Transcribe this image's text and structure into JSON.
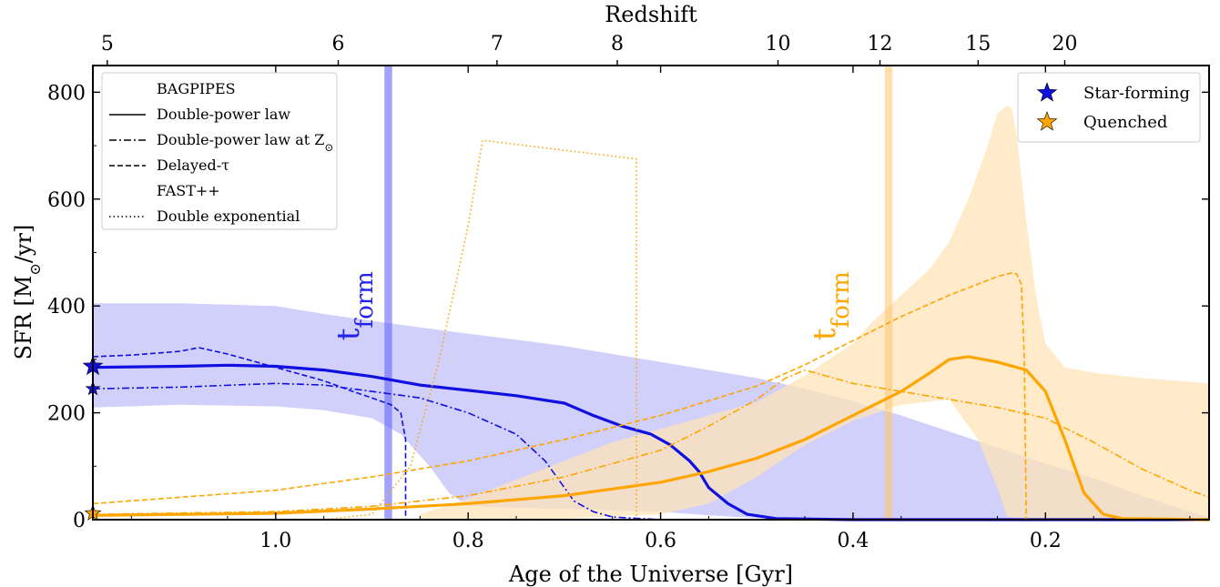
{
  "chart_data": {
    "type": "line",
    "xlabel": "Age of the Universe [Gyr]",
    "ylabel_prefix": "SFR [M",
    "ylabel_sub": "⊙",
    "ylabel_suffix": "/yr]",
    "top_xlabel": "Redshift",
    "xlim": [
      1.19,
      0.03
    ],
    "ylim": [
      0,
      850
    ],
    "x_ticks": [
      {
        "value": 1.0,
        "label": "1.0"
      },
      {
        "value": 0.8,
        "label": "0.8"
      },
      {
        "value": 0.6,
        "label": "0.6"
      },
      {
        "value": 0.4,
        "label": "0.4"
      },
      {
        "value": 0.2,
        "label": "0.2"
      }
    ],
    "y_ticks": [
      {
        "value": 0,
        "label": "0"
      },
      {
        "value": 200,
        "label": "200"
      },
      {
        "value": 400,
        "label": "400"
      },
      {
        "value": 600,
        "label": "600"
      },
      {
        "value": 800,
        "label": "800"
      }
    ],
    "top_ticks": [
      {
        "age": 1.175,
        "label": "5"
      },
      {
        "age": 0.935,
        "label": "6"
      },
      {
        "age": 0.77,
        "label": "7"
      },
      {
        "age": 0.645,
        "label": "8"
      },
      {
        "age": 0.478,
        "label": "10"
      },
      {
        "age": 0.372,
        "label": "12"
      },
      {
        "age": 0.27,
        "label": "15"
      },
      {
        "age": 0.18,
        "label": "20"
      }
    ],
    "legend_left": {
      "placement": "top-left",
      "entries": [
        {
          "style": "none",
          "label": "BAGPIPES"
        },
        {
          "style": "solid",
          "label": "Double-power law"
        },
        {
          "style": "dashdot",
          "label": "Double-power law at Z",
          "sub": "⊙"
        },
        {
          "style": "dashed",
          "label": "Delayed-τ"
        },
        {
          "style": "none",
          "label": "FAST++"
        },
        {
          "style": "dotted",
          "label": "Double exponential"
        }
      ]
    },
    "legend_right": {
      "placement": "top-right",
      "entries": [
        {
          "marker": "star",
          "color": "#1010e0",
          "label": "Star-forming"
        },
        {
          "marker": "star",
          "color": "#ffa500",
          "label": "Quenched"
        }
      ]
    },
    "annotations": [
      {
        "text": "t",
        "sub": "form",
        "color": "#2222ee",
        "x": 0.925,
        "y": 400
      },
      {
        "text": "t",
        "sub": "form",
        "color": "#ffa500",
        "x": 0.43,
        "y": 400
      }
    ],
    "tform_bands": [
      {
        "color": "#6666ff",
        "x_center": 0.883,
        "width": 0.008
      },
      {
        "color": "#ffc87a",
        "x_center": 0.363,
        "width": 0.008
      }
    ],
    "colors": {
      "star_forming": "#1010e0",
      "quenched": "#ffa500",
      "sf_band": "#c8c8fa",
      "q_band": "#ffe4b8"
    },
    "bands": [
      {
        "name": "sf_band",
        "upper": [
          [
            1.19,
            405
          ],
          [
            1.1,
            405
          ],
          [
            1.0,
            400
          ],
          [
            0.95,
            385
          ],
          [
            0.9,
            372
          ],
          [
            0.85,
            360
          ],
          [
            0.8,
            348
          ],
          [
            0.75,
            337
          ],
          [
            0.7,
            325
          ],
          [
            0.65,
            310
          ],
          [
            0.6,
            295
          ],
          [
            0.55,
            280
          ],
          [
            0.5,
            265
          ],
          [
            0.45,
            245
          ],
          [
            0.4,
            222
          ],
          [
            0.35,
            195
          ],
          [
            0.3,
            165
          ],
          [
            0.25,
            135
          ],
          [
            0.2,
            105
          ],
          [
            0.15,
            78
          ],
          [
            0.1,
            45
          ],
          [
            0.05,
            15
          ],
          [
            0.03,
            5
          ]
        ],
        "lower": [
          [
            1.19,
            210
          ],
          [
            1.1,
            215
          ],
          [
            1.0,
            212
          ],
          [
            0.95,
            205
          ],
          [
            0.9,
            190
          ],
          [
            0.87,
            160
          ],
          [
            0.84,
            100
          ],
          [
            0.82,
            50
          ],
          [
            0.8,
            25
          ],
          [
            0.75,
            22
          ],
          [
            0.7,
            20
          ],
          [
            0.6,
            15
          ],
          [
            0.55,
            8
          ],
          [
            0.5,
            3
          ],
          [
            0.4,
            1
          ],
          [
            0.03,
            0
          ]
        ]
      },
      {
        "name": "q_band",
        "upper": [
          [
            0.85,
            10
          ],
          [
            0.8,
            40
          ],
          [
            0.75,
            75
          ],
          [
            0.7,
            110
          ],
          [
            0.65,
            145
          ],
          [
            0.6,
            170
          ],
          [
            0.55,
            195
          ],
          [
            0.5,
            220
          ],
          [
            0.45,
            270
          ],
          [
            0.4,
            330
          ],
          [
            0.38,
            370
          ],
          [
            0.35,
            420
          ],
          [
            0.32,
            470
          ],
          [
            0.3,
            520
          ],
          [
            0.28,
            600
          ],
          [
            0.26,
            700
          ],
          [
            0.25,
            760
          ],
          [
            0.24,
            775
          ],
          [
            0.235,
            770
          ],
          [
            0.23,
            720
          ],
          [
            0.22,
            560
          ],
          [
            0.21,
            420
          ],
          [
            0.2,
            330
          ],
          [
            0.18,
            285
          ],
          [
            0.15,
            275
          ],
          [
            0.1,
            265
          ],
          [
            0.03,
            255
          ]
        ],
        "lower": [
          [
            0.85,
            0
          ],
          [
            0.7,
            2
          ],
          [
            0.6,
            10
          ],
          [
            0.55,
            30
          ],
          [
            0.5,
            80
          ],
          [
            0.45,
            140
          ],
          [
            0.4,
            185
          ],
          [
            0.35,
            215
          ],
          [
            0.3,
            225
          ],
          [
            0.27,
            150
          ],
          [
            0.25,
            60
          ],
          [
            0.24,
            5
          ],
          [
            0.2,
            0
          ],
          [
            0.03,
            0
          ]
        ]
      }
    ],
    "series": [
      {
        "name": "Double-power law",
        "color": "#1010e0",
        "dash": "",
        "width": 3.2,
        "points": [
          [
            1.19,
            285
          ],
          [
            1.1,
            287
          ],
          [
            1.05,
            289
          ],
          [
            1.0,
            287
          ],
          [
            0.95,
            280
          ],
          [
            0.9,
            268
          ],
          [
            0.85,
            252
          ],
          [
            0.8,
            242
          ],
          [
            0.75,
            232
          ],
          [
            0.7,
            218
          ],
          [
            0.67,
            195
          ],
          [
            0.64,
            175
          ],
          [
            0.61,
            160
          ],
          [
            0.59,
            140
          ],
          [
            0.57,
            110
          ],
          [
            0.56,
            90
          ],
          [
            0.55,
            60
          ],
          [
            0.53,
            30
          ],
          [
            0.51,
            10
          ],
          [
            0.48,
            2
          ],
          [
            0.4,
            0
          ],
          [
            0.03,
            0
          ]
        ]
      },
      {
        "style": "dashdot",
        "color": "#1010e0",
        "dash": "8,3,2,3",
        "width": 1.6,
        "points": [
          [
            1.19,
            245
          ],
          [
            1.1,
            248
          ],
          [
            1.0,
            255
          ],
          [
            0.95,
            252
          ],
          [
            0.9,
            240
          ],
          [
            0.85,
            228
          ],
          [
            0.8,
            200
          ],
          [
            0.75,
            160
          ],
          [
            0.72,
            110
          ],
          [
            0.7,
            60
          ],
          [
            0.69,
            35
          ],
          [
            0.67,
            15
          ],
          [
            0.65,
            5
          ],
          [
            0.6,
            0
          ],
          [
            0.03,
            0
          ]
        ]
      },
      {
        "style": "dashed",
        "color": "#1010e0",
        "dash": "6,3",
        "width": 1.6,
        "points": [
          [
            1.19,
            305
          ],
          [
            1.15,
            308
          ],
          [
            1.1,
            315
          ],
          [
            1.08,
            322
          ],
          [
            1.05,
            310
          ],
          [
            1.0,
            285
          ],
          [
            0.95,
            260
          ],
          [
            0.92,
            240
          ],
          [
            0.9,
            228
          ],
          [
            0.88,
            215
          ],
          [
            0.87,
            200
          ],
          [
            0.865,
            150
          ],
          [
            0.865,
            0
          ],
          [
            0.03,
            0
          ]
        ]
      },
      {
        "name": "Quenched",
        "color": "#ffa500",
        "dash": "",
        "width": 3.2,
        "points": [
          [
            1.19,
            8
          ],
          [
            1.0,
            12
          ],
          [
            0.9,
            20
          ],
          [
            0.8,
            30
          ],
          [
            0.7,
            45
          ],
          [
            0.6,
            70
          ],
          [
            0.55,
            90
          ],
          [
            0.5,
            115
          ],
          [
            0.45,
            150
          ],
          [
            0.4,
            195
          ],
          [
            0.35,
            240
          ],
          [
            0.32,
            275
          ],
          [
            0.3,
            300
          ],
          [
            0.28,
            305
          ],
          [
            0.25,
            295
          ],
          [
            0.22,
            280
          ],
          [
            0.2,
            240
          ],
          [
            0.18,
            150
          ],
          [
            0.16,
            50
          ],
          [
            0.14,
            10
          ],
          [
            0.12,
            2
          ],
          [
            0.03,
            0
          ]
        ]
      },
      {
        "style": "dashdot",
        "color": "#ffa500",
        "dash": "8,3,2,3",
        "width": 1.6,
        "points": [
          [
            1.19,
            10
          ],
          [
            1.0,
            15
          ],
          [
            0.9,
            25
          ],
          [
            0.8,
            45
          ],
          [
            0.7,
            80
          ],
          [
            0.6,
            130
          ],
          [
            0.55,
            175
          ],
          [
            0.5,
            225
          ],
          [
            0.47,
            265
          ],
          [
            0.45,
            280
          ],
          [
            0.43,
            270
          ],
          [
            0.4,
            255
          ],
          [
            0.35,
            240
          ],
          [
            0.3,
            225
          ],
          [
            0.25,
            210
          ],
          [
            0.2,
            190
          ],
          [
            0.15,
            145
          ],
          [
            0.1,
            95
          ],
          [
            0.05,
            55
          ],
          [
            0.03,
            42
          ]
        ]
      },
      {
        "style": "dashed",
        "color": "#ffa500",
        "dash": "6,3",
        "width": 1.6,
        "points": [
          [
            1.19,
            30
          ],
          [
            1.0,
            55
          ],
          [
            0.9,
            80
          ],
          [
            0.8,
            110
          ],
          [
            0.7,
            150
          ],
          [
            0.6,
            195
          ],
          [
            0.5,
            250
          ],
          [
            0.45,
            290
          ],
          [
            0.4,
            335
          ],
          [
            0.35,
            380
          ],
          [
            0.3,
            420
          ],
          [
            0.25,
            455
          ],
          [
            0.235,
            462
          ],
          [
            0.23,
            460
          ],
          [
            0.225,
            440
          ],
          [
            0.222,
            300
          ],
          [
            0.22,
            0
          ],
          [
            0.03,
            0
          ]
        ]
      },
      {
        "style": "dotted",
        "color": "#ffa500",
        "dash": "1.5,3",
        "width": 1.6,
        "points": [
          [
            0.95,
            0
          ],
          [
            0.9,
            10
          ],
          [
            0.86,
            100
          ],
          [
            0.83,
            300
          ],
          [
            0.8,
            550
          ],
          [
            0.785,
            710
          ],
          [
            0.625,
            675
          ],
          [
            0.625,
            0
          ]
        ]
      }
    ]
  }
}
